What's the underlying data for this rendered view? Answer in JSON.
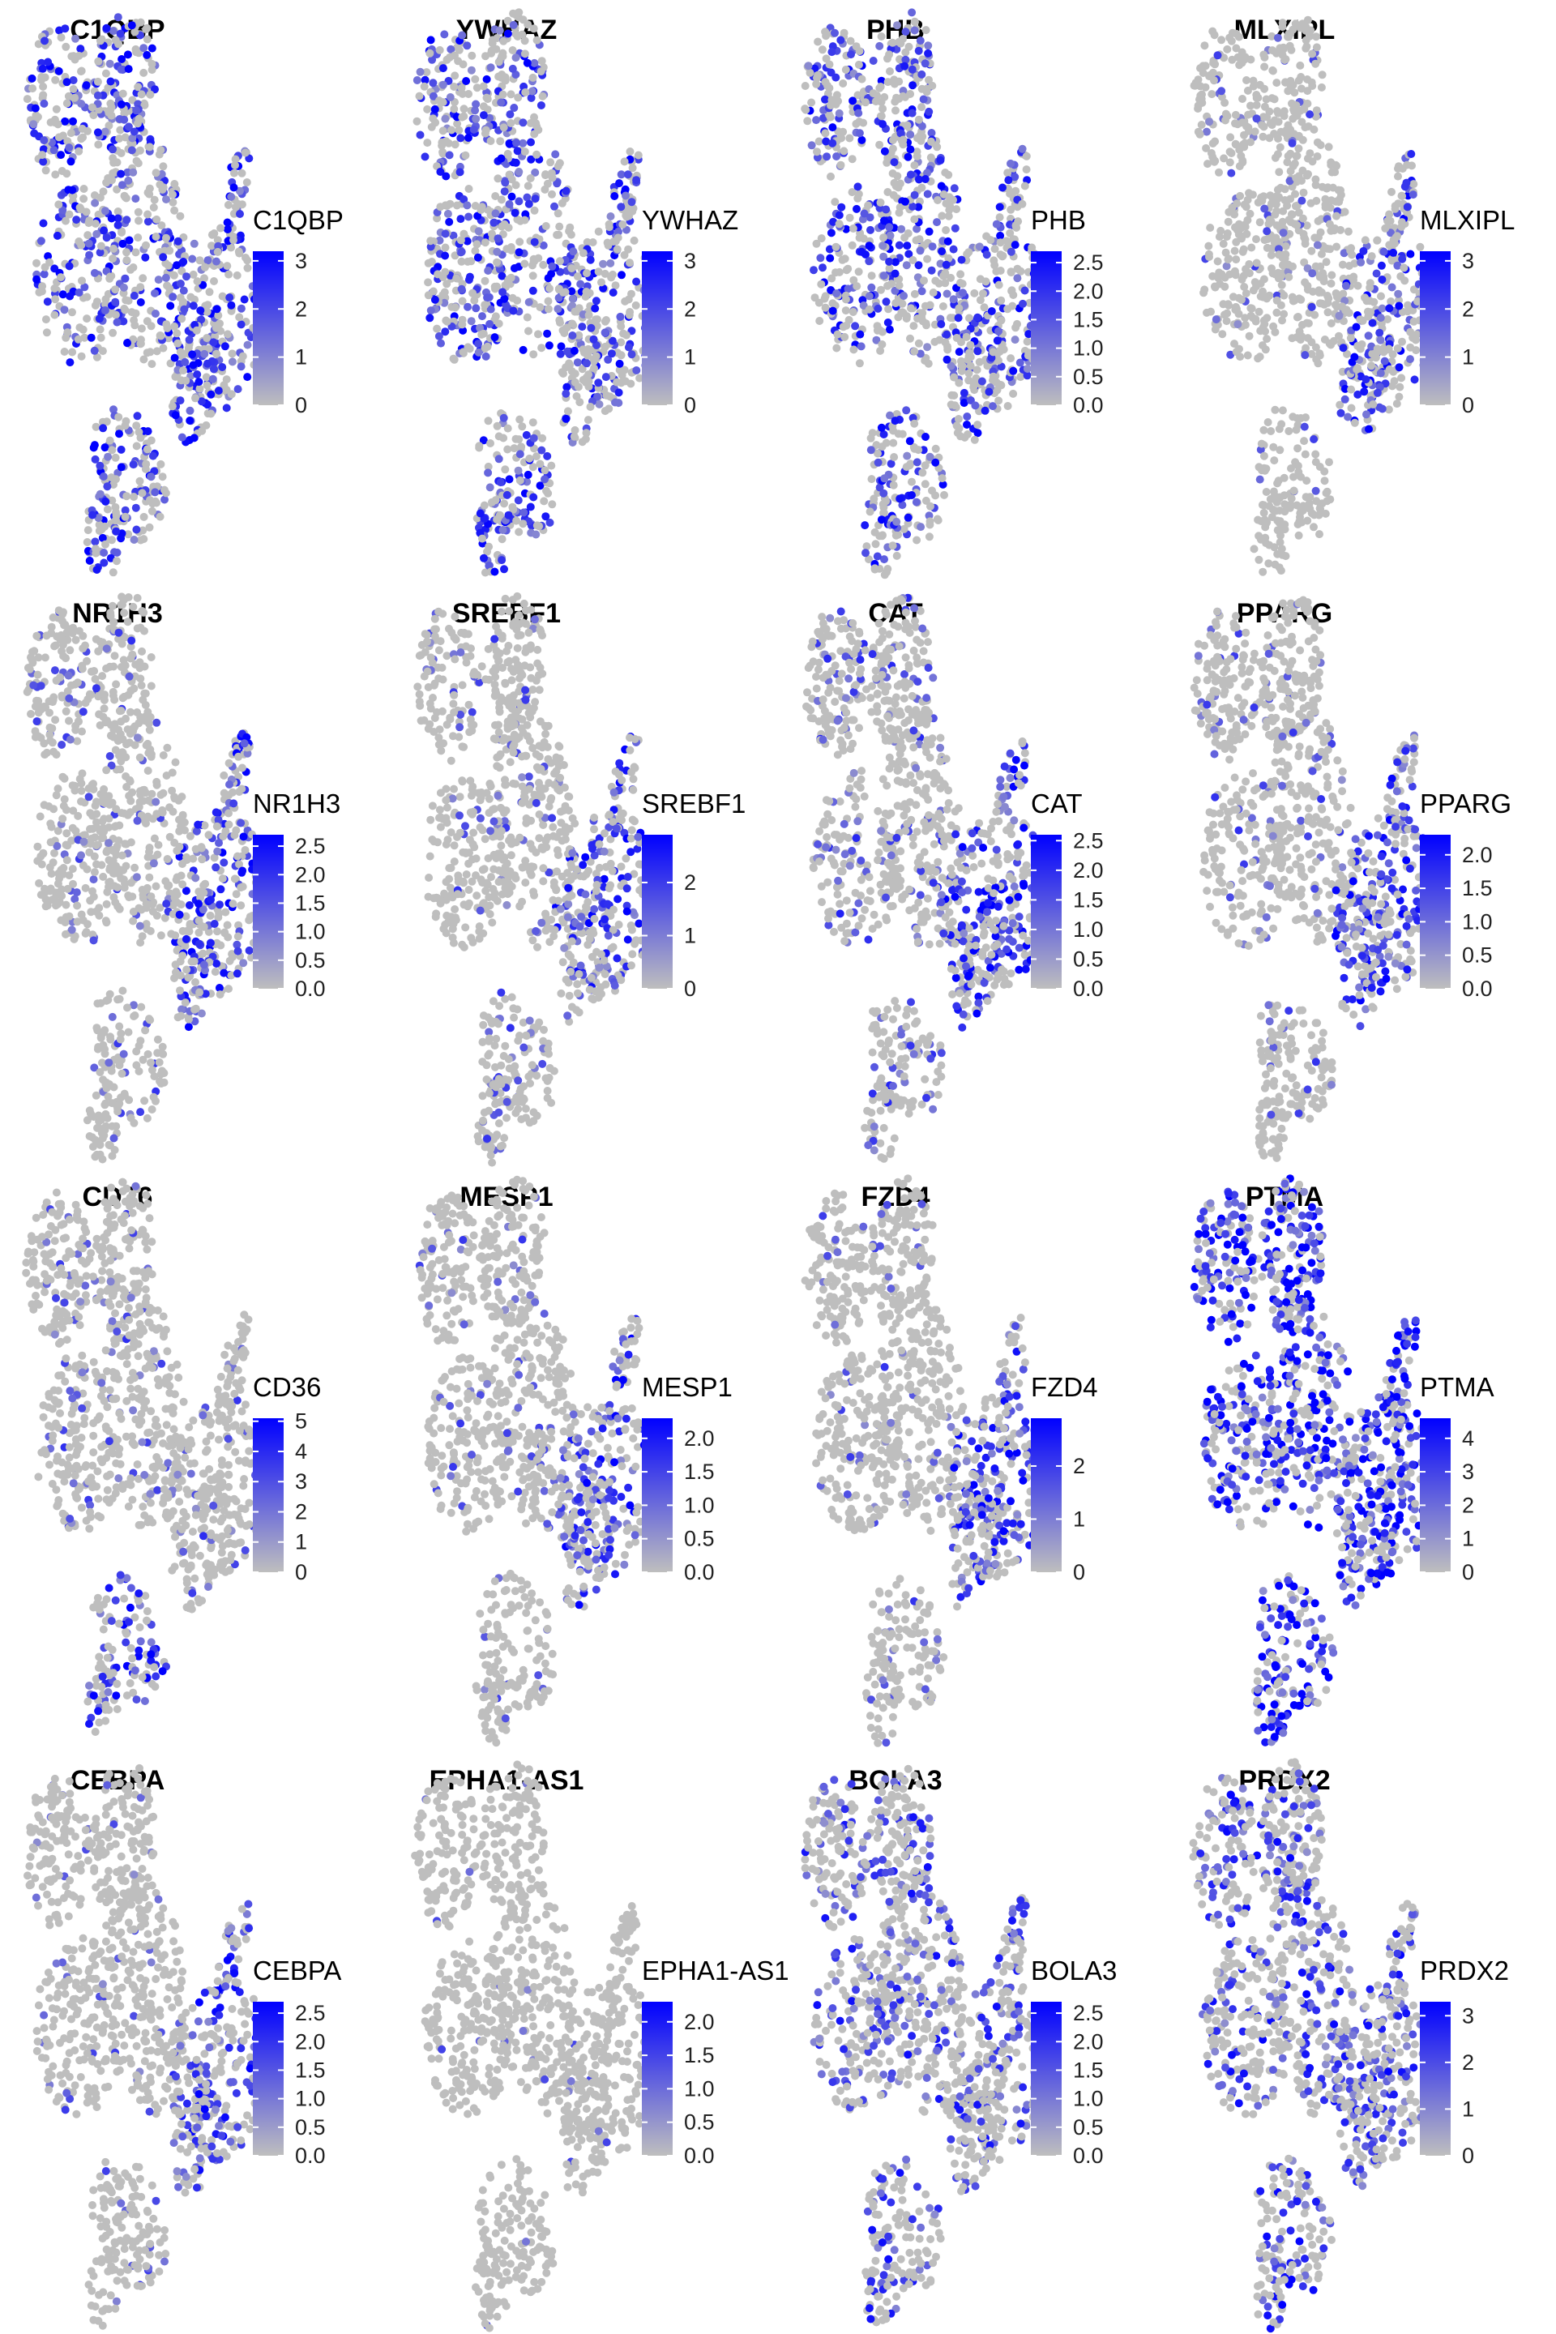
{
  "figure": {
    "colors": {
      "low": "#BEBEBE",
      "high": "#0000FF",
      "background": "#FFFFFF"
    }
  },
  "chart_data": [
    {
      "type": "scatter",
      "title": "C1QBP",
      "legend_title": "C1QBP",
      "legend_ticks": [
        "0",
        "1",
        "2",
        "3"
      ],
      "range": [
        0,
        3.2
      ],
      "expression": 0.45,
      "hot": null
    },
    {
      "type": "scatter",
      "title": "YWHAZ",
      "legend_title": "YWHAZ",
      "legend_ticks": [
        "0",
        "1",
        "2",
        "3"
      ],
      "range": [
        0,
        3.2
      ],
      "expression": 0.45,
      "hot": null
    },
    {
      "type": "scatter",
      "title": "PHB",
      "legend_title": "PHB",
      "legend_ticks": [
        "0.0",
        "0.5",
        "1.0",
        "1.5",
        "2.0",
        "2.5"
      ],
      "range": [
        0,
        2.7
      ],
      "expression": 0.42,
      "hot": null
    },
    {
      "type": "scatter",
      "title": "MLXIPL",
      "legend_title": "MLXIPL",
      "legend_ticks": [
        "0",
        "1",
        "2",
        "3"
      ],
      "range": [
        0,
        3.2
      ],
      "expression": 0.08,
      "hot": "right"
    },
    {
      "type": "scatter",
      "title": "NR1H3",
      "legend_title": "NR1H3",
      "legend_ticks": [
        "0.0",
        "0.5",
        "1.0",
        "1.5",
        "2.0",
        "2.5"
      ],
      "range": [
        0,
        2.7
      ],
      "expression": 0.1,
      "hot": "right"
    },
    {
      "type": "scatter",
      "title": "SREBF1",
      "legend_title": "SREBF1",
      "legend_ticks": [
        "0",
        "1",
        "2"
      ],
      "range": [
        0,
        2.9
      ],
      "expression": 0.1,
      "hot": "right"
    },
    {
      "type": "scatter",
      "title": "CAT",
      "legend_title": "CAT",
      "legend_ticks": [
        "0.0",
        "0.5",
        "1.0",
        "1.5",
        "2.0",
        "2.5"
      ],
      "range": [
        0,
        2.6
      ],
      "expression": 0.18,
      "hot": "right"
    },
    {
      "type": "scatter",
      "title": "PPARG",
      "legend_title": "PPARG",
      "legend_ticks": [
        "0.0",
        "0.5",
        "1.0",
        "1.5",
        "2.0"
      ],
      "range": [
        0,
        2.3
      ],
      "expression": 0.1,
      "hot": "right"
    },
    {
      "type": "scatter",
      "title": "CD36",
      "legend_title": "CD36",
      "legend_ticks": [
        "0",
        "1",
        "2",
        "3",
        "4",
        "5"
      ],
      "range": [
        0,
        5.1
      ],
      "expression": 0.12,
      "hot": "bottom"
    },
    {
      "type": "scatter",
      "title": "MESP1",
      "legend_title": "MESP1",
      "legend_ticks": [
        "0.0",
        "0.5",
        "1.0",
        "1.5",
        "2.0"
      ],
      "range": [
        0,
        2.3
      ],
      "expression": 0.08,
      "hot": "right"
    },
    {
      "type": "scatter",
      "title": "FZD4",
      "legend_title": "FZD4",
      "legend_ticks": [
        "0",
        "1",
        "2"
      ],
      "range": [
        0,
        2.9
      ],
      "expression": 0.08,
      "hot": "right"
    },
    {
      "type": "scatter",
      "title": "PTMA",
      "legend_title": "PTMA",
      "legend_ticks": [
        "0",
        "1",
        "2",
        "3",
        "4"
      ],
      "range": [
        0,
        4.6
      ],
      "expression": 0.65,
      "hot": null
    },
    {
      "type": "scatter",
      "title": "CEBPA",
      "legend_title": "CEBPA",
      "legend_ticks": [
        "0.0",
        "0.5",
        "1.0",
        "1.5",
        "2.0",
        "2.5"
      ],
      "range": [
        0,
        2.7
      ],
      "expression": 0.05,
      "hot": "right"
    },
    {
      "type": "scatter",
      "title": "EPHA1-AS1",
      "legend_title": "EPHA1-AS1",
      "legend_ticks": [
        "0.0",
        "0.5",
        "1.0",
        "1.5",
        "2.0"
      ],
      "range": [
        0,
        2.3
      ],
      "expression": 0.02,
      "hot": null
    },
    {
      "type": "scatter",
      "title": "BOLA3",
      "legend_title": "BOLA3",
      "legend_ticks": [
        "0.0",
        "0.5",
        "1.0",
        "1.5",
        "2.0",
        "2.5"
      ],
      "range": [
        0,
        2.7
      ],
      "expression": 0.3,
      "hot": null
    },
    {
      "type": "scatter",
      "title": "PRDX2",
      "legend_title": "PRDX2",
      "legend_ticks": [
        "0",
        "1",
        "2",
        "3"
      ],
      "range": [
        0,
        3.3
      ],
      "expression": 0.35,
      "hot": null
    }
  ]
}
